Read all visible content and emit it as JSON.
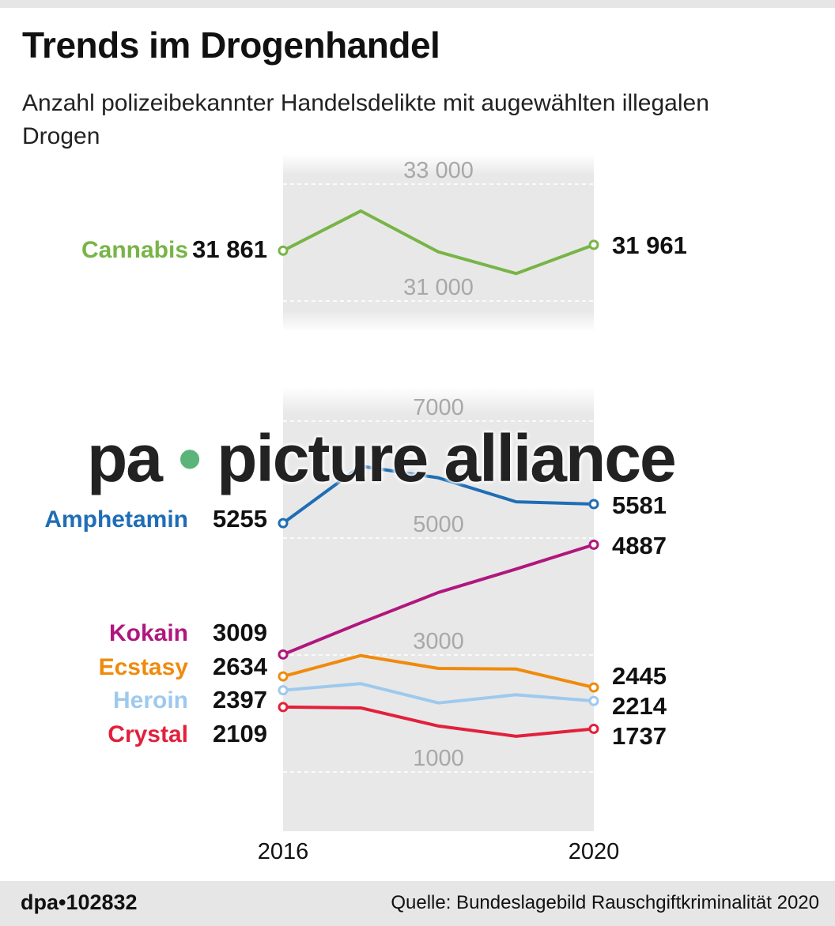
{
  "title": "Trends im Drogenhandel",
  "subtitle": "Anzahl polizeibekannter Handelsdelikte mit augewählten illegalen Drogen",
  "footer": {
    "id": "dpa•102832",
    "source": "Quelle: Bundeslagebild Rauschgiftkriminalität 2020"
  },
  "watermark": {
    "left": "pa",
    "dot": "•",
    "right": "picture alliance"
  },
  "chart_data": [
    {
      "type": "line",
      "x": [
        2016,
        2017,
        2018,
        2019,
        2020
      ],
      "xtick_labels": [
        "2016",
        "2020"
      ],
      "ylim": [
        30500,
        33300
      ],
      "yticks": [
        31000,
        33000
      ],
      "ytick_labels": [
        "31 000",
        "33 000"
      ],
      "grid": true,
      "series": [
        {
          "name": "Cannabis",
          "color": "#78b447",
          "values": [
            31861,
            32540,
            31840,
            31470,
            31961
          ],
          "start_label": "31 861",
          "end_label": "31 961"
        }
      ]
    },
    {
      "type": "line",
      "x": [
        2016,
        2017,
        2018,
        2019,
        2020
      ],
      "xtick_labels": [
        "2016",
        "2020"
      ],
      "ylim": [
        0,
        7600
      ],
      "yticks": [
        1000,
        3000,
        5000,
        7000
      ],
      "ytick_labels": [
        "1000",
        "3000",
        "5000",
        "7000"
      ],
      "grid": true,
      "series": [
        {
          "name": "Amphetamin",
          "color": "#1f6db5",
          "values": [
            5255,
            6230,
            6030,
            5620,
            5581
          ],
          "start_label": "5255",
          "end_label": "5581"
        },
        {
          "name": "Kokain",
          "color": "#b0177e",
          "values": [
            3009,
            3550,
            4070,
            4470,
            4887
          ],
          "start_label": "3009",
          "end_label": "4887"
        },
        {
          "name": "Ecstasy",
          "color": "#f08a0c",
          "values": [
            2634,
            2990,
            2770,
            2760,
            2445
          ],
          "start_label": "2634",
          "end_label": "2445"
        },
        {
          "name": "Heroin",
          "color": "#9ec9ee",
          "values": [
            2397,
            2510,
            2180,
            2320,
            2214
          ],
          "start_label": "2397",
          "end_label": "2214"
        },
        {
          "name": "Crystal",
          "color": "#e2203c",
          "values": [
            2109,
            2095,
            1785,
            1610,
            1737
          ],
          "start_label": "2109",
          "end_label": "1737"
        }
      ]
    }
  ]
}
